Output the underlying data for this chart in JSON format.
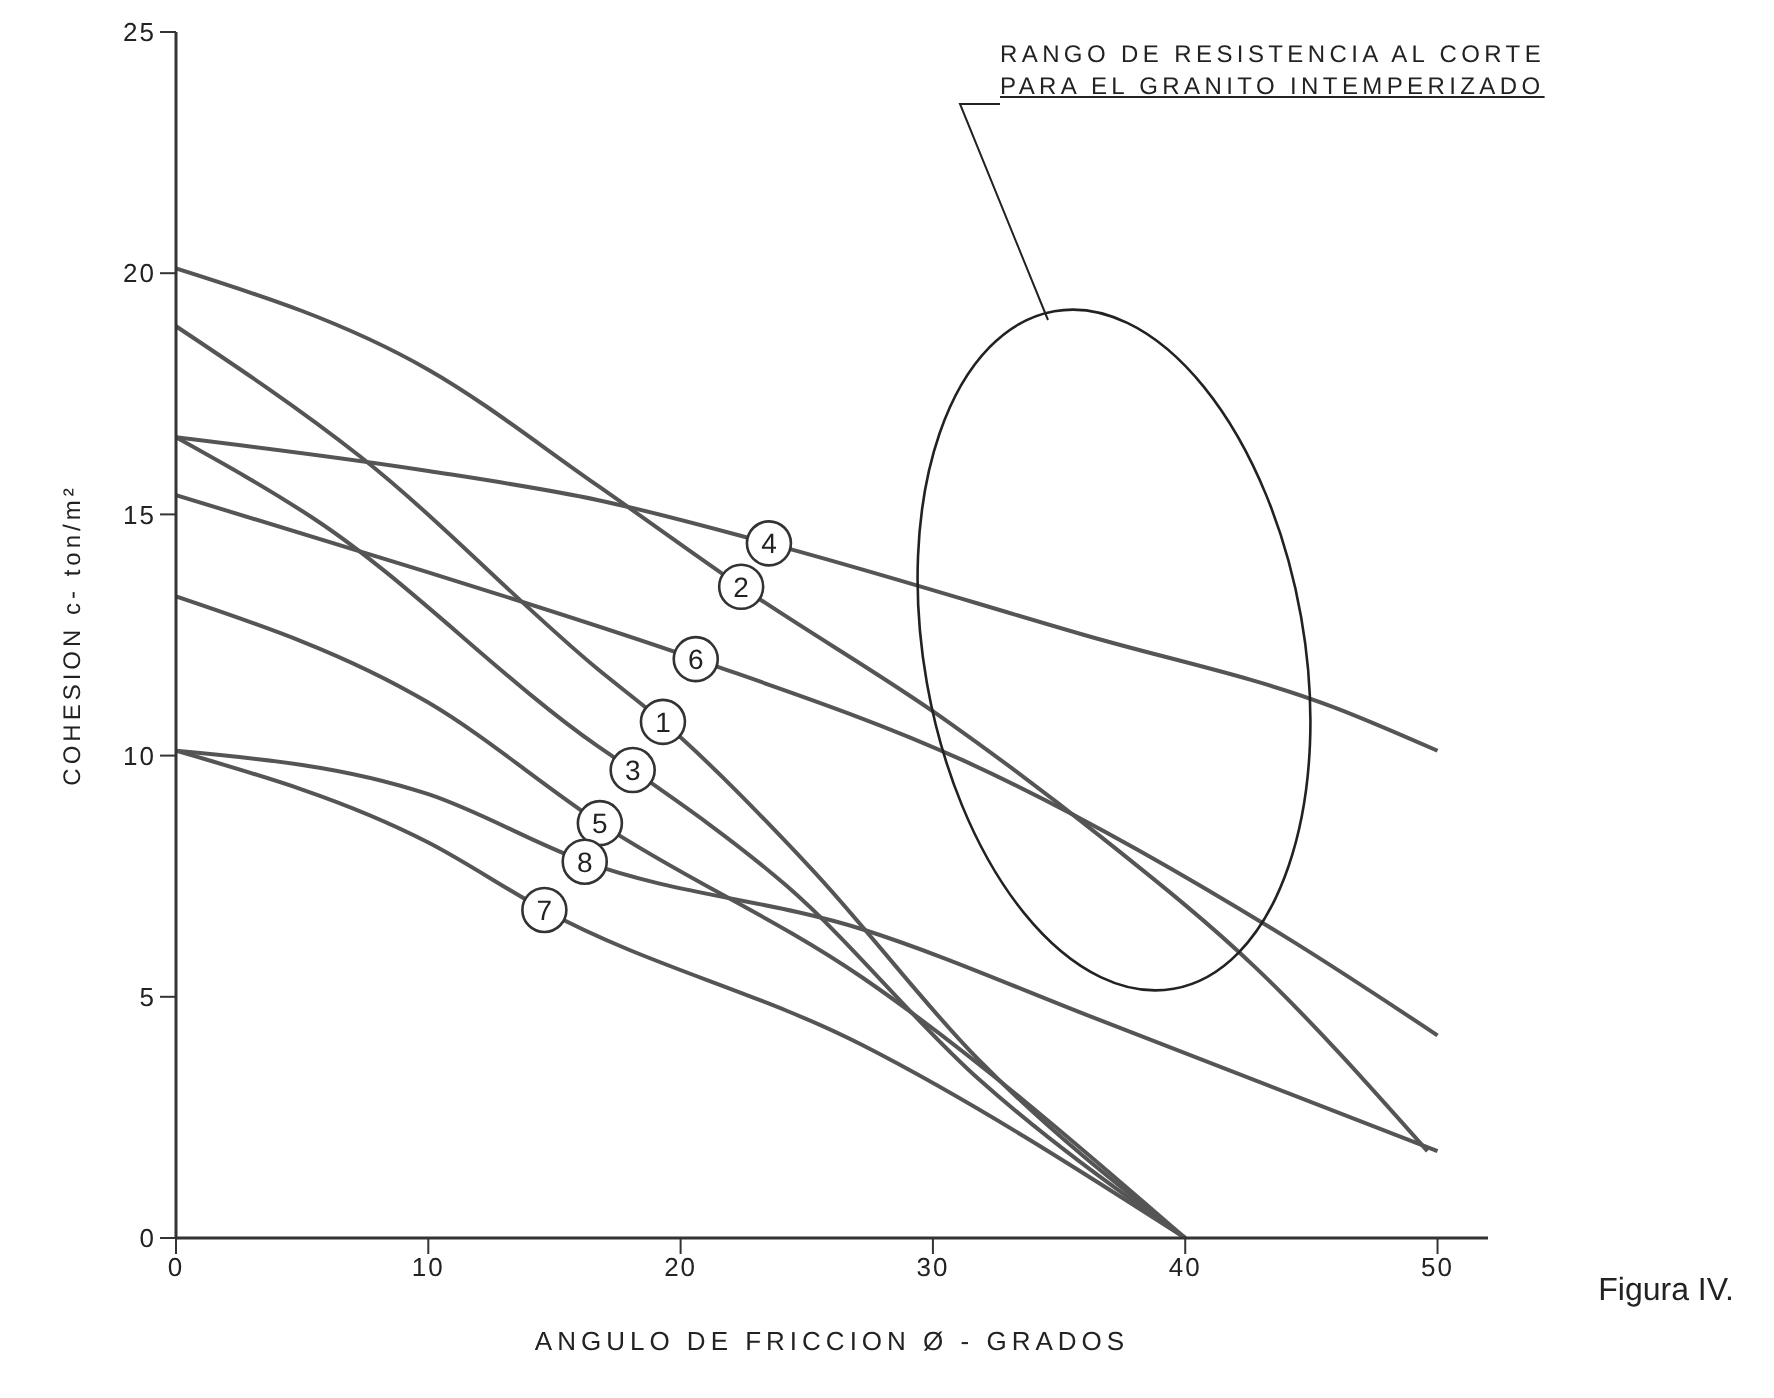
{
  "chart_data": {
    "type": "line",
    "xlabel": "ANGULO DE FRICCION Ø - GRADOS",
    "ylabel": "COHESION c- ton/m²",
    "xlim": [
      0,
      52
    ],
    "xticks": [
      0,
      10,
      20,
      30,
      40,
      50
    ],
    "ylim": [
      0,
      25
    ],
    "yticks": [
      0,
      5,
      10,
      15,
      20,
      25
    ],
    "grid": false,
    "legend": false,
    "marker": "none",
    "line_style": "solid",
    "series": [
      {
        "color": "#555555",
        "x": [
          0,
          7.3,
          16.7,
          19.3,
          25.1,
          31.8,
          40
        ],
        "values": [
          18.9,
          16.2,
          11.8,
          10.7,
          7.7,
          3.7,
          0
        ]
      },
      {
        "color": "#555555",
        "x": [
          0,
          10,
          16.7,
          22.4,
          30.6,
          36.7,
          42.8,
          49.6
        ],
        "values": [
          20.1,
          18.0,
          15.6,
          13.5,
          10.7,
          8.3,
          5.6,
          1.8
        ]
      },
      {
        "color": "#555555",
        "x": [
          0,
          5.5,
          16.7,
          18.1,
          24.2,
          31.8,
          40
        ],
        "values": [
          16.6,
          14.9,
          10.2,
          9.7,
          7.3,
          3.3,
          0
        ]
      },
      {
        "color": "#555555",
        "x": [
          0,
          10,
          16.7,
          23.5,
          36,
          45.9,
          50
        ],
        "values": [
          16.6,
          15.9,
          15.3,
          14.4,
          12.5,
          11.0,
          10.1
        ]
      },
      {
        "color": "#555555",
        "x": [
          0,
          10,
          16.8,
          27.2,
          40
        ],
        "values": [
          13.3,
          11.1,
          8.6,
          5.4,
          0
        ]
      },
      {
        "color": "#555555",
        "x": [
          0,
          10,
          20.6,
          31.2,
          44.1,
          50
        ],
        "values": [
          15.4,
          13.8,
          12.0,
          9.9,
          6.2,
          4.2
        ]
      },
      {
        "color": "#555555",
        "x": [
          0,
          10,
          14.6,
          27.2,
          40
        ],
        "values": [
          10.1,
          8.2,
          6.8,
          4.0,
          0
        ]
      },
      {
        "color": "#555555",
        "x": [
          0,
          10,
          16.2,
          27.2,
          36.7,
          50
        ],
        "values": [
          10.1,
          9.2,
          7.8,
          6.4,
          4.5,
          1.8
        ]
      }
    ],
    "annotations": [
      {
        "text": "1",
        "x": 19.3,
        "y": 10.7
      },
      {
        "text": "2",
        "x": 22.4,
        "y": 13.5
      },
      {
        "text": "3",
        "x": 18.1,
        "y": 9.7
      },
      {
        "text": "4",
        "x": 23.5,
        "y": 14.4
      },
      {
        "text": "5",
        "x": 16.8,
        "y": 8.6
      },
      {
        "text": "6",
        "x": 20.6,
        "y": 12.0
      },
      {
        "text": "7",
        "x": 14.6,
        "y": 6.8
      },
      {
        "text": "8",
        "x": 16.2,
        "y": 7.8
      },
      "RANGO DE RESISTENCIA AL CORTE\nPARA EL GRANITO INTEMPERIZADO",
      "Figura IV."
    ]
  }
}
